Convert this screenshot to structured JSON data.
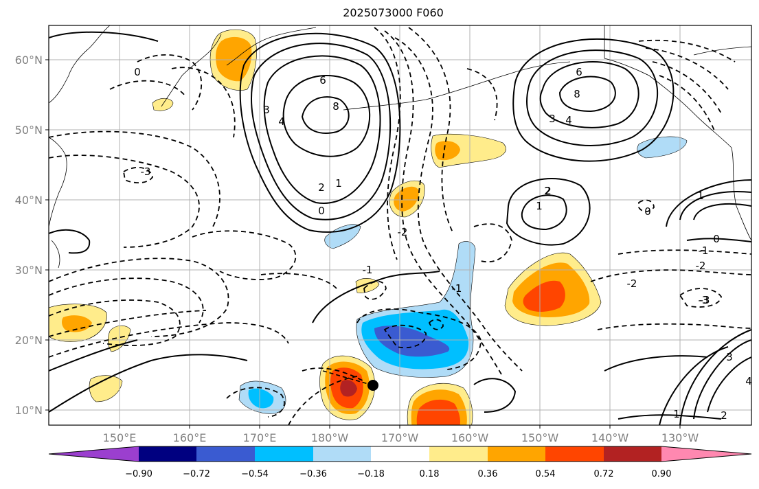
{
  "title": "2025073000 F060",
  "lat_ticks": [
    "60°N",
    "50°N",
    "40°N",
    "30°N",
    "20°N",
    "10°N"
  ],
  "lon_ticks": [
    "150°E",
    "160°E",
    "170°E",
    "180°W",
    "170°W",
    "160°W",
    "150°W",
    "140°W",
    "130°W"
  ],
  "colorbar": {
    "tick_labels": [
      "−0.90",
      "−0.72",
      "−0.54",
      "−0.36",
      "−0.18",
      "0.18",
      "0.36",
      "0.54",
      "0.72",
      "0.90"
    ],
    "colors": [
      "#9b3fcf",
      "#000080",
      "#3a5bd1",
      "#00bfff",
      "#b0dcf7",
      "#ffffff",
      "#ffec8b",
      "#ffa500",
      "#ff4500",
      "#b22222",
      "#ff88b0"
    ]
  },
  "contour_labels": [
    "6",
    "8",
    "3",
    "4",
    "2",
    "1",
    "0",
    "-1",
    "-2",
    "-3",
    "6",
    "8",
    "3",
    "4",
    "2",
    "1",
    "0",
    "-1",
    "-2",
    "-3",
    "2",
    "1",
    "0",
    "-1",
    "-2",
    "-3",
    "4",
    "3",
    "2",
    "1",
    "0"
  ],
  "marker": {
    "name": "storm-center",
    "color": "#000000"
  }
}
